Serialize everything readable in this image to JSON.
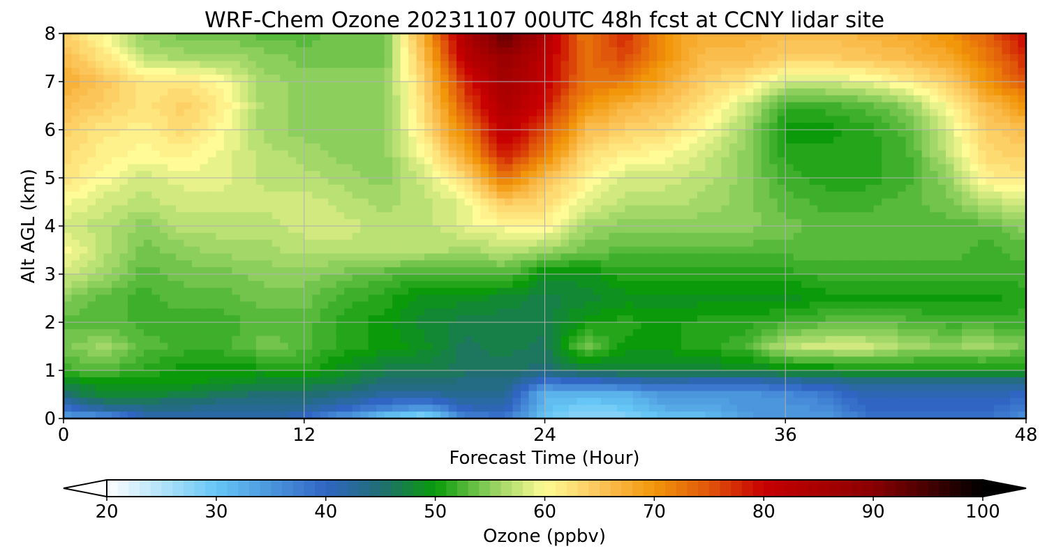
{
  "chart_data": {
    "type": "heatmap",
    "title": "WRF-Chem Ozone  20231107 00UTC 48h fcst at CCNY lidar site",
    "xlabel": "Forecast Time (Hour)",
    "ylabel": "Alt AGL (km)",
    "xlim": [
      0,
      48
    ],
    "ylim": [
      0,
      8
    ],
    "x_ticks": [
      0,
      12,
      24,
      36,
      48
    ],
    "y_ticks": [
      0,
      1,
      2,
      3,
      4,
      5,
      6,
      7,
      8
    ],
    "grid": true,
    "colorbar": {
      "label": "Ozone  (ppbv)",
      "min": 20,
      "max": 100,
      "ticks": [
        20,
        30,
        40,
        50,
        60,
        70,
        80,
        90,
        100
      ],
      "orientation": "horizontal",
      "extend": "both",
      "stops": [
        {
          "v": 20,
          "c": "#ffffff"
        },
        {
          "v": 30,
          "c": "#66c6f5"
        },
        {
          "v": 40,
          "c": "#3065c4"
        },
        {
          "v": 45,
          "c": "#206e73"
        },
        {
          "v": 50,
          "c": "#0a9a0a"
        },
        {
          "v": 55,
          "c": "#8ccf5c"
        },
        {
          "v": 60,
          "c": "#fffb96"
        },
        {
          "v": 65,
          "c": "#fcc55a"
        },
        {
          "v": 70,
          "c": "#f2960a"
        },
        {
          "v": 75,
          "c": "#e0560a"
        },
        {
          "v": 80,
          "c": "#c80000"
        },
        {
          "v": 90,
          "c": "#8a0000"
        },
        {
          "v": 100,
          "c": "#000000"
        }
      ]
    },
    "grid_hours": [
      0,
      2,
      4,
      6,
      8,
      10,
      12,
      14,
      16,
      18,
      20,
      22,
      24,
      26,
      28,
      30,
      32,
      34,
      36,
      38,
      40,
      42,
      44,
      46,
      48
    ],
    "grid_alts_km": [
      0,
      0.25,
      0.5,
      0.75,
      1,
      1.5,
      2,
      2.5,
      3,
      3.5,
      4,
      4.5,
      5,
      5.5,
      6,
      6.5,
      7,
      7.5,
      8
    ],
    "values_ppbv": [
      [
        33,
        34,
        41,
        41,
        42,
        42,
        40,
        34,
        29,
        26,
        36,
        38,
        30,
        27,
        28,
        30,
        31,
        34,
        35,
        34,
        38,
        38,
        39,
        39,
        35
      ],
      [
        40,
        44,
        44,
        44,
        43,
        43,
        43,
        41,
        38,
        36,
        41,
        42,
        31,
        29,
        30,
        33,
        33,
        35,
        35,
        36,
        40,
        40,
        40,
        40,
        38
      ],
      [
        45,
        48,
        48,
        47,
        46,
        45,
        45,
        44,
        42,
        42,
        43,
        43,
        32,
        32,
        32,
        35,
        35,
        35,
        36,
        38,
        41,
        41,
        41,
        41,
        40
      ],
      [
        48,
        50,
        50,
        50,
        49,
        48,
        48,
        47,
        45,
        45,
        44,
        44,
        38,
        39,
        40,
        41,
        40,
        40,
        41,
        42,
        43,
        43,
        43,
        43,
        43
      ],
      [
        52,
        53,
        51,
        50,
        50,
        50,
        51,
        49,
        47,
        47,
        46,
        46,
        45,
        47,
        48,
        48,
        48,
        48,
        49,
        49,
        50,
        50,
        50,
        50,
        50
      ],
      [
        54,
        56,
        53,
        52,
        52,
        54,
        53,
        51,
        50,
        49,
        46,
        47,
        46,
        54,
        50,
        50,
        51,
        52,
        57,
        58,
        58,
        56,
        55,
        56,
        54
      ],
      [
        53,
        53,
        52,
        52,
        52,
        53,
        53,
        51,
        50,
        48,
        47,
        47,
        47,
        50,
        51,
        50,
        51,
        51,
        52,
        53,
        53,
        53,
        52,
        52,
        52
      ],
      [
        55,
        53,
        52,
        53,
        53,
        54,
        54,
        52,
        51,
        49,
        49,
        48,
        47,
        48,
        49,
        49,
        49,
        49,
        49,
        50,
        50,
        50,
        50,
        50,
        51
      ],
      [
        58,
        56,
        53,
        54,
        54,
        55,
        55,
        54,
        53,
        52,
        52,
        53,
        49,
        49,
        51,
        51,
        51,
        51,
        51,
        52,
        52,
        52,
        52,
        52,
        52
      ],
      [
        60,
        57,
        54,
        55,
        56,
        56,
        57,
        57,
        57,
        57,
        56,
        57,
        56,
        54,
        53,
        53,
        53,
        53,
        53,
        53,
        53,
        53,
        53,
        52,
        53
      ],
      [
        58,
        57,
        55,
        57,
        57,
        57,
        58,
        58,
        57,
        57,
        59,
        60,
        61,
        56,
        55,
        55,
        55,
        55,
        54,
        53,
        53,
        53,
        53,
        53,
        55
      ],
      [
        60,
        58,
        57,
        58,
        58,
        58,
        58,
        57,
        56,
        57,
        59,
        65,
        63,
        59,
        57,
        57,
        56,
        55,
        53,
        52,
        52,
        53,
        54,
        57,
        58
      ],
      [
        62,
        60,
        58,
        59,
        59,
        57,
        57,
        56,
        55,
        58,
        63,
        73,
        66,
        61,
        58,
        58,
        57,
        55,
        52,
        51,
        51,
        52,
        55,
        61,
        62
      ],
      [
        63,
        61,
        60,
        61,
        59,
        57,
        56,
        55,
        55,
        60,
        68,
        79,
        72,
        63,
        61,
        60,
        58,
        55,
        51,
        51,
        51,
        52,
        57,
        63,
        64
      ],
      [
        64,
        62,
        61,
        63,
        60,
        56,
        55,
        55,
        55,
        62,
        72,
        82,
        76,
        66,
        64,
        63,
        60,
        56,
        50,
        50,
        51,
        53,
        58,
        64,
        66
      ],
      [
        66,
        64,
        62,
        64,
        61,
        56,
        55,
        55,
        55,
        63,
        75,
        84,
        79,
        70,
        67,
        65,
        62,
        58,
        52,
        52,
        53,
        55,
        60,
        66,
        70
      ],
      [
        68,
        65,
        62,
        62,
        60,
        56,
        55,
        55,
        55,
        64,
        78,
        86,
        81,
        73,
        72,
        68,
        64,
        62,
        58,
        58,
        59,
        61,
        64,
        70,
        75
      ],
      [
        66,
        62,
        57,
        56,
        56,
        55,
        54,
        54,
        54,
        66,
        82,
        88,
        82,
        73,
        76,
        70,
        66,
        66,
        64,
        64,
        65,
        66,
        68,
        72,
        78
      ],
      [
        64,
        60,
        55,
        54,
        54,
        53,
        53,
        54,
        54,
        68,
        84,
        94,
        84,
        72,
        78,
        70,
        67,
        67,
        66,
        66,
        67,
        68,
        70,
        74,
        80
      ]
    ]
  }
}
